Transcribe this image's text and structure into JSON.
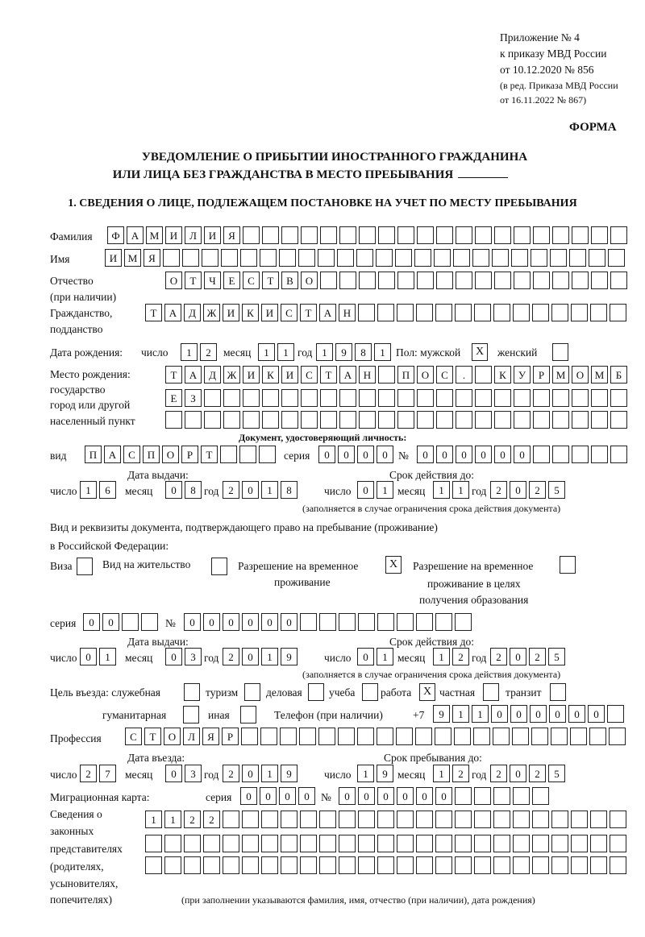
{
  "header": {
    "appendix": "Приложение № 4",
    "order": "к приказу МВД России",
    "order_date": "от 10.12.2020 № 856",
    "edition_line1": "(в ред. Приказа МВД России",
    "edition_line2": "от 16.11.2022 № 867)",
    "form_label": "ФОРМА",
    "title_line1": "УВЕДОМЛЕНИЕ О ПРИБЫТИИ ИНОСТРАННОГО ГРАЖДАНИНА",
    "title_line2": "ИЛИ ЛИЦА БЕЗ ГРАЖДАНСТВА В МЕСТО ПРЕБЫВАНИЯ",
    "section1": "1. СВЕДЕНИЯ О ЛИЦЕ, ПОДЛЕЖАЩЕМ ПОСТАНОВКЕ НА УЧЕТ ПО МЕСТУ ПРЕБЫВАНИЯ"
  },
  "person": {
    "surname_label": "Фамилия",
    "surname": "ФАМИЛИЯ",
    "name_label": "Имя",
    "name": "ИМЯ",
    "patronymic_label1": "Отчество",
    "patronymic_label2": "(при наличии)",
    "patronymic": "ОТЧЕСТВО",
    "citizenship_label1": "Гражданство,",
    "citizenship_label2": "подданство",
    "citizenship": "ТАДЖИКИСТАН",
    "birth_date_label": "Дата рождения:",
    "day_label": "число",
    "month_label": "месяц",
    "year_label": "год",
    "birth_day": "12",
    "birth_month": "11",
    "birth_year": "1981",
    "sex_label": "Пол: мужской",
    "male": "X",
    "female_label": "женский",
    "female": "",
    "birthplace_label1": "Место рождения:",
    "birthplace_label2": "государство",
    "birthplace_label3": "город или другой",
    "birthplace_label4": "населенный пункт",
    "birthplace_row1": "ТАДЖИКИСТАН ПОС. КУРМОМБ",
    "birthplace_row2": "ЕЗ",
    "birthplace_row3": ""
  },
  "id_document": {
    "heading": "Документ, удостоверяющий личность:",
    "kind_label": "вид",
    "kind": "ПАСПОРТ",
    "series_label": "серия",
    "series": "0000",
    "number_label": "№",
    "number": "000000",
    "issue_label": "Дата выдачи:",
    "valid_label": "Срок действия до:",
    "issue_day": "16",
    "issue_month": "08",
    "issue_year": "2018",
    "valid_day": "01",
    "valid_month": "11",
    "valid_year": "2025",
    "note": "(заполняется в случае ограничения срока действия документа)"
  },
  "stay_document": {
    "heading1": "Вид и реквизиты документа, подтверждающего право на пребывание (проживание)",
    "heading2": "в Российской Федерации:",
    "visa_label": "Виза",
    "visa": "",
    "residence_label": "Вид на жительство",
    "residence": "",
    "temp_label1": "Разрешение на временное",
    "temp_label2": "проживание",
    "temp": "X",
    "edu_label1": "Разрешение на временное",
    "edu_label2": "проживание в целях",
    "edu_label3": "получения образования",
    "edu": "",
    "series_label": "серия",
    "series": "00",
    "number_label": "№",
    "number": "000000",
    "issue_label": "Дата выдачи:",
    "valid_label": "Срок действия до:",
    "issue_day": "01",
    "issue_month": "03",
    "issue_year": "2019",
    "valid_day": "01",
    "valid_month": "12",
    "valid_year": "2025",
    "note": "(заполняется в случае ограничения срока действия документа)"
  },
  "purpose": {
    "label": "Цель въезда: служебная",
    "official": "",
    "tourism_label": "туризм",
    "tourism": "",
    "business_label": "деловая",
    "business": "",
    "study_label": "учеба",
    "study": "",
    "work_label": "работа",
    "work": "X",
    "private_label": "частная",
    "private": "",
    "transit_label": "транзит",
    "transit": "",
    "humanitarian_label": "гуманитарная",
    "humanitarian": "",
    "other_label": "иная",
    "other": "",
    "phone_label": "Телефон (при наличии)",
    "phone_prefix": "+7",
    "phone": "911000000"
  },
  "profession": {
    "label": "Профессия",
    "value": "СТОЛЯР"
  },
  "entry": {
    "entry_label": "Дата въезда:",
    "stay_label": "Срок пребывания до:",
    "entry_day": "27",
    "entry_month": "03",
    "entry_year": "2019",
    "stay_day": "19",
    "stay_month": "12",
    "stay_year": "2025"
  },
  "migration_card": {
    "label": "Миграционная карта:",
    "series_label": "серия",
    "series": "0000",
    "number_label": "№",
    "number": "000000"
  },
  "representatives": {
    "label1": "Сведения о",
    "label2": "законных",
    "label3": "представителях",
    "label4": "(родителях,",
    "label5": "усыновителях,",
    "label6": "попечителях)",
    "row1": "1122",
    "row2": "",
    "row3": "",
    "note": "(при заполнении указываются фамилия, имя, отчество (при наличии), дата рождения)"
  }
}
